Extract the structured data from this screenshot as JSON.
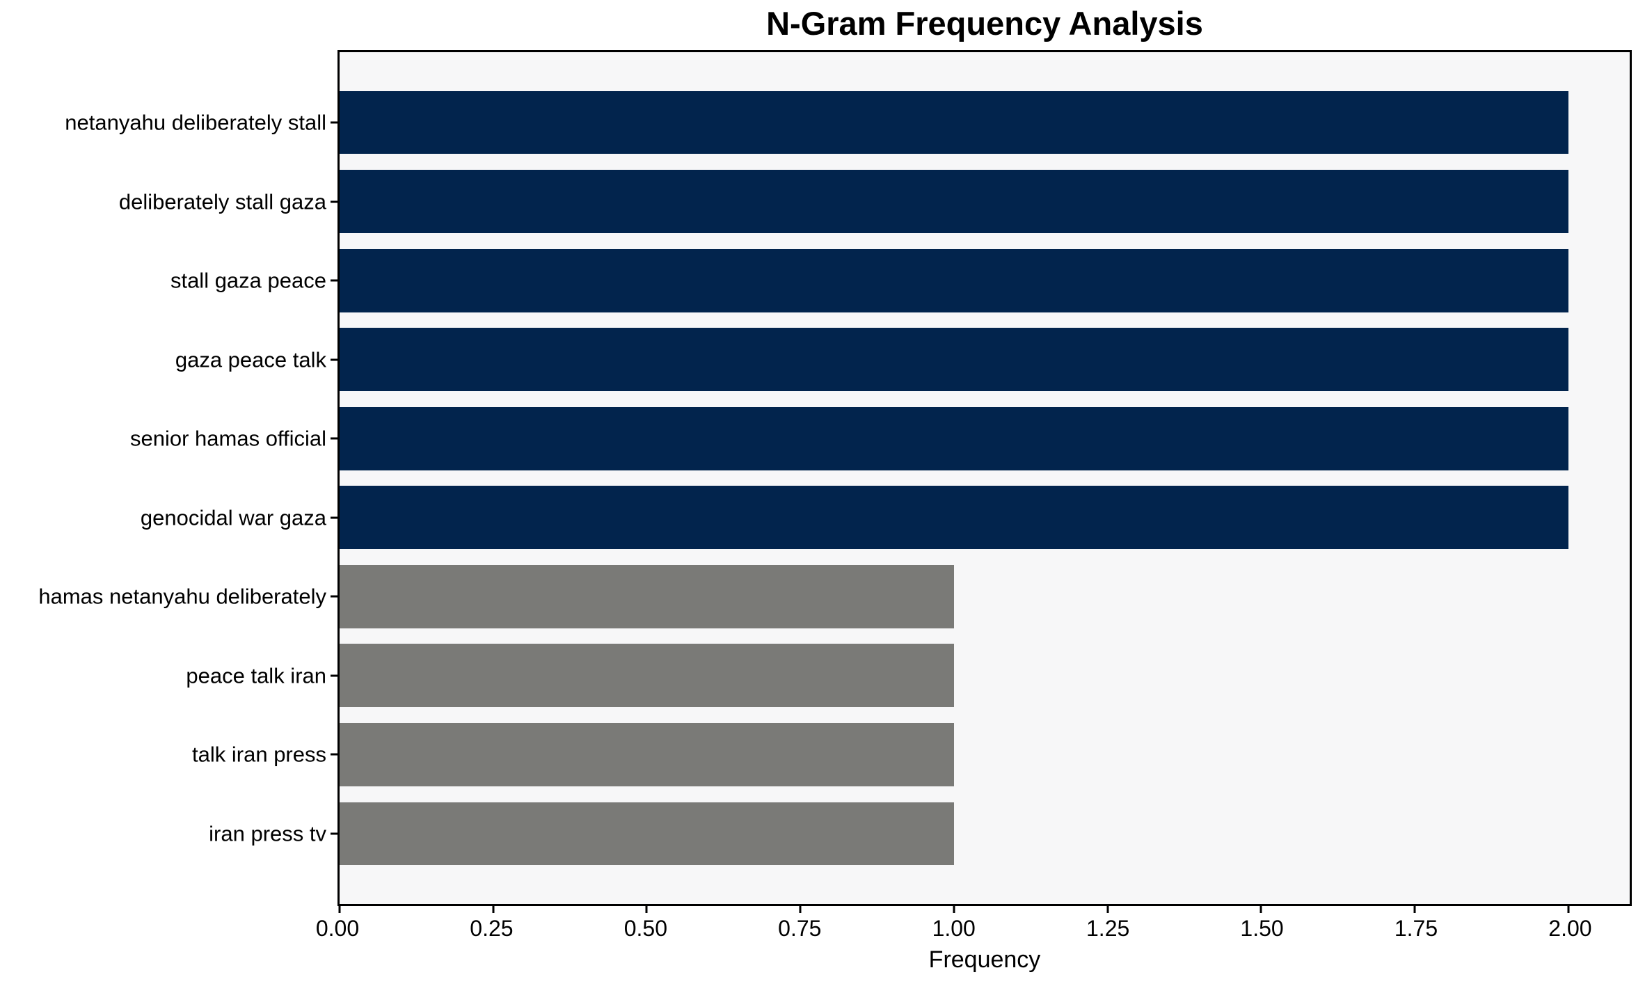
{
  "chart_data": {
    "type": "bar",
    "orientation": "horizontal",
    "title": "N-Gram Frequency Analysis",
    "xlabel": "Frequency",
    "ylabel": "",
    "categories": [
      "netanyahu deliberately stall",
      "deliberately stall gaza",
      "stall gaza peace",
      "gaza peace talk",
      "senior hamas official",
      "genocidal war gaza",
      "hamas netanyahu deliberately",
      "peace talk iran",
      "talk iran press",
      "iran press tv"
    ],
    "values": [
      2,
      2,
      2,
      2,
      2,
      2,
      1,
      1,
      1,
      1
    ],
    "bar_colors": [
      "#02244d",
      "#02244d",
      "#02244d",
      "#02244d",
      "#02244d",
      "#02244d",
      "#7a7a77",
      "#7a7a77",
      "#7a7a77",
      "#7a7a77"
    ],
    "xlim": [
      0,
      2.1
    ],
    "xticks": [
      0,
      0.25,
      0.5,
      0.75,
      1,
      1.25,
      1.5,
      1.75,
      2
    ],
    "xtick_labels": [
      "0.00",
      "0.25",
      "0.50",
      "0.75",
      "1.00",
      "1.25",
      "1.50",
      "1.75",
      "2.00"
    ],
    "grid": false,
    "legend": "none",
    "plot_background": "#f7f7f8",
    "figure_background": "#ffffff",
    "accent_colors": {
      "high_frequency_bar": "#02244d",
      "low_frequency_bar": "#7a7a77",
      "axis": "#000000"
    }
  }
}
